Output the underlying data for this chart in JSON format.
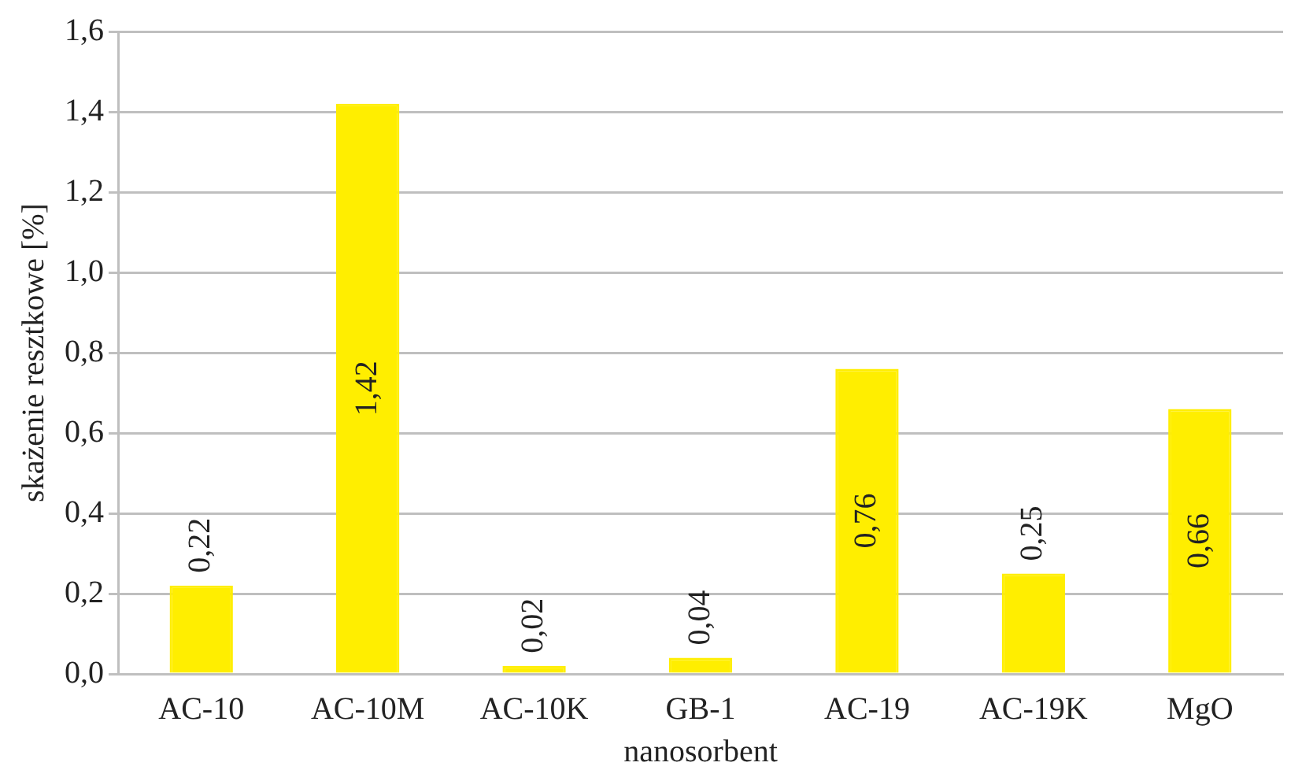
{
  "chart_data": {
    "type": "bar",
    "xlabel": "nanosorbent",
    "ylabel": "skażenie resztkowe [%]",
    "categories": [
      "AC-10",
      "AC-10M",
      "AC-10K",
      "GB-1",
      "AC-19",
      "AC-19K",
      "MgO"
    ],
    "values": [
      0.22,
      1.42,
      0.02,
      0.04,
      0.76,
      0.25,
      0.66
    ],
    "value_labels": [
      "0,22",
      "1,42",
      "0,02",
      "0,04",
      "0,76",
      "0,25",
      "0,66"
    ],
    "color": "#ffee00",
    "ylim": [
      0,
      1.6
    ],
    "yticks": [
      {
        "value": 0,
        "label": "0,0"
      },
      {
        "value": 0.2,
        "label": "0,2"
      },
      {
        "value": 0.4,
        "label": "0,4"
      },
      {
        "value": 0.6,
        "label": "0,6"
      },
      {
        "value": 0.8,
        "label": "0,8"
      },
      {
        "value": 1,
        "label": "1,0"
      },
      {
        "value": 1.2,
        "label": "1,2"
      },
      {
        "value": 1.4,
        "label": "1,4"
      },
      {
        "value": 1.6,
        "label": "1,6"
      }
    ],
    "grid": "y",
    "legend": false
  }
}
